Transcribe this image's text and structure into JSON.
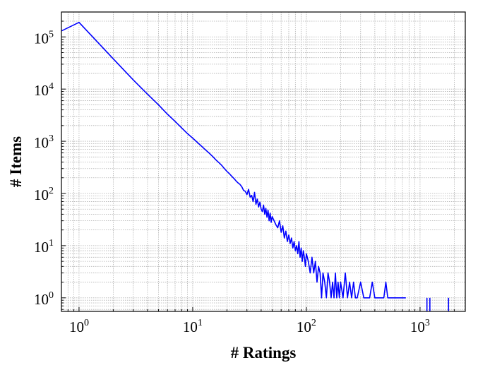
{
  "chart_data": {
    "type": "line",
    "xlabel": "# Ratings",
    "ylabel": "# Items",
    "xscale": "log",
    "yscale": "log",
    "xlim": [
      0.7,
      2500
    ],
    "ylim": [
      0.55,
      300000
    ],
    "grid": true,
    "colors": {
      "line": "#0000ff",
      "grid": "#b0b0b0",
      "axis": "#000000"
    },
    "x_tick_labels": [
      {
        "value": 1,
        "base": "10",
        "exp": "0"
      },
      {
        "value": 10,
        "base": "10",
        "exp": "1"
      },
      {
        "value": 100,
        "base": "10",
        "exp": "2"
      },
      {
        "value": 1000,
        "base": "10",
        "exp": "3"
      }
    ],
    "y_tick_labels": [
      {
        "value": 1,
        "base": "10",
        "exp": "0"
      },
      {
        "value": 10,
        "base": "10",
        "exp": "1"
      },
      {
        "value": 100,
        "base": "10",
        "exp": "2"
      },
      {
        "value": 1000,
        "base": "10",
        "exp": "3"
      },
      {
        "value": 10000,
        "base": "10",
        "exp": "4"
      },
      {
        "value": 100000,
        "base": "10",
        "exp": "5"
      }
    ],
    "series": [
      {
        "color": "#0000ff",
        "points": [
          [
            0.7,
            130000
          ],
          [
            1,
            190000
          ],
          [
            2,
            38000
          ],
          [
            3,
            15000
          ],
          [
            4,
            8000
          ],
          [
            5,
            5000
          ],
          [
            6,
            3300
          ],
          [
            7,
            2400
          ],
          [
            8,
            1800
          ],
          [
            9,
            1400
          ],
          [
            10,
            1150
          ],
          [
            11,
            950
          ],
          [
            12,
            800
          ],
          [
            13,
            680
          ],
          [
            14,
            590
          ],
          [
            15,
            510
          ],
          [
            16,
            440
          ],
          [
            17,
            390
          ],
          [
            18,
            345
          ],
          [
            19,
            300
          ],
          [
            20,
            265
          ],
          [
            21,
            240
          ],
          [
            22,
            215
          ],
          [
            23,
            195
          ],
          [
            24,
            175
          ],
          [
            25,
            160
          ],
          [
            26,
            150
          ],
          [
            27,
            135
          ],
          [
            28,
            115
          ],
          [
            29,
            110
          ],
          [
            30,
            95
          ],
          [
            31,
            120
          ],
          [
            32,
            85
          ],
          [
            33,
            92
          ],
          [
            34,
            70
          ],
          [
            35,
            105
          ],
          [
            36,
            62
          ],
          [
            37,
            78
          ],
          [
            38,
            55
          ],
          [
            39,
            68
          ],
          [
            40,
            50
          ],
          [
            41,
            45
          ],
          [
            42,
            60
          ],
          [
            43,
            40
          ],
          [
            44,
            52
          ],
          [
            45,
            35
          ],
          [
            46,
            48
          ],
          [
            47,
            30
          ],
          [
            48,
            42
          ],
          [
            49,
            28
          ],
          [
            50,
            36
          ],
          [
            52,
            30
          ],
          [
            54,
            25
          ],
          [
            56,
            22
          ],
          [
            58,
            30
          ],
          [
            60,
            18
          ],
          [
            62,
            24
          ],
          [
            64,
            14
          ],
          [
            66,
            19
          ],
          [
            68,
            12
          ],
          [
            70,
            16
          ],
          [
            72,
            11
          ],
          [
            74,
            14
          ],
          [
            76,
            9
          ],
          [
            78,
            12
          ],
          [
            80,
            8
          ],
          [
            82,
            10
          ],
          [
            84,
            7
          ],
          [
            86,
            12
          ],
          [
            88,
            6
          ],
          [
            90,
            9
          ],
          [
            92,
            5
          ],
          [
            94,
            8
          ],
          [
            96,
            6
          ],
          [
            98,
            4
          ],
          [
            100,
            7
          ],
          [
            104,
            5
          ],
          [
            108,
            3
          ],
          [
            112,
            6
          ],
          [
            116,
            3
          ],
          [
            120,
            5
          ],
          [
            124,
            2
          ],
          [
            128,
            4
          ],
          [
            132,
            3
          ],
          [
            136,
            1
          ],
          [
            140,
            3
          ],
          [
            145,
            2
          ],
          [
            150,
            1
          ],
          [
            155,
            3
          ],
          [
            160,
            2
          ],
          [
            165,
            1
          ],
          [
            170,
            2
          ],
          [
            175,
            1
          ],
          [
            180,
            3
          ],
          [
            185,
            1
          ],
          [
            190,
            2
          ],
          [
            195,
            1
          ],
          [
            200,
            2
          ],
          [
            210,
            1
          ],
          [
            220,
            3
          ],
          [
            230,
            1
          ],
          [
            240,
            2
          ],
          [
            250,
            1
          ],
          [
            260,
            2
          ],
          [
            270,
            1
          ],
          [
            280,
            1
          ],
          [
            300,
            2
          ],
          [
            320,
            1
          ],
          [
            340,
            1
          ],
          [
            360,
            1
          ],
          [
            380,
            2
          ],
          [
            400,
            1
          ],
          [
            420,
            1
          ],
          [
            450,
            1
          ],
          [
            480,
            1
          ],
          [
            500,
            2
          ],
          [
            520,
            1
          ],
          [
            560,
            1
          ],
          [
            600,
            1
          ],
          [
            650,
            1
          ],
          [
            700,
            1
          ],
          [
            750,
            1
          ]
        ]
      }
    ],
    "isolated_points": [
      [
        1150,
        1
      ],
      [
        1220,
        1
      ],
      [
        1780,
        1
      ]
    ]
  }
}
